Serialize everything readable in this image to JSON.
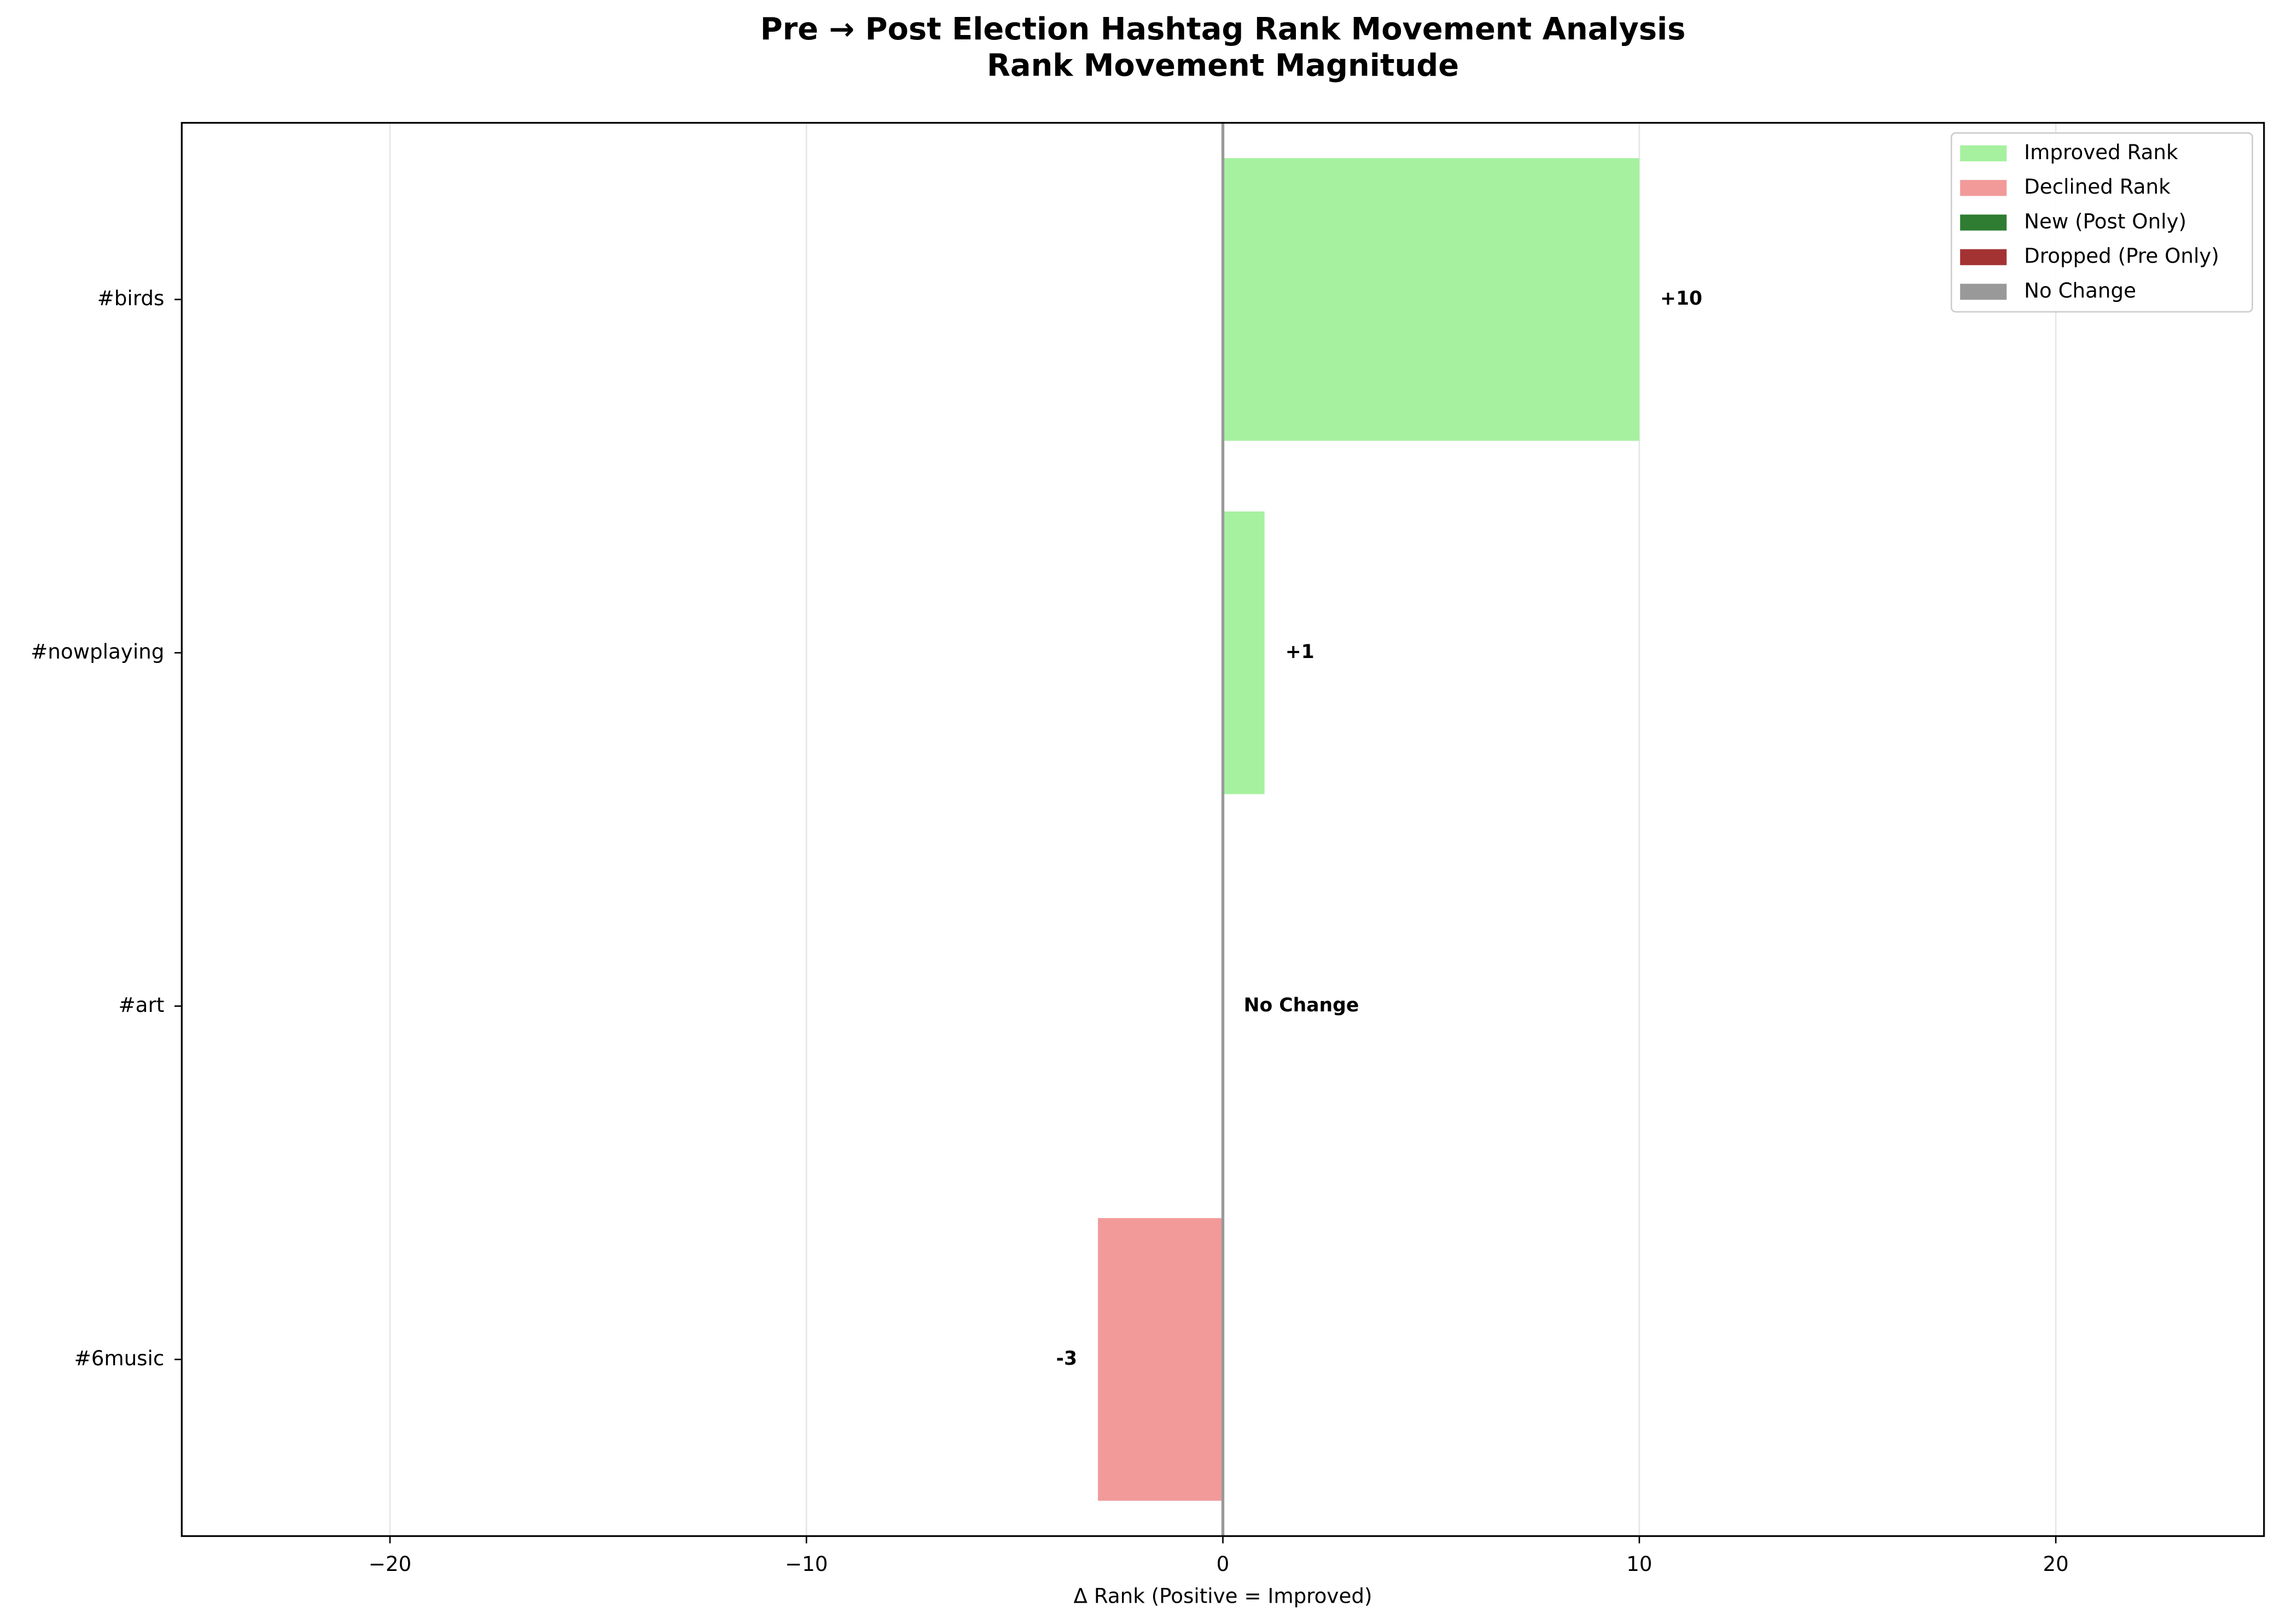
{
  "chart_data": {
    "type": "barh",
    "title": "Pre → Post Election Hashtag Rank Movement Analysis",
    "subtitle": "Rank Movement Magnitude",
    "xlabel": "Δ Rank (Positive = Improved)",
    "categories": [
      "#birds",
      "#nowplaying",
      "#art",
      "#6music"
    ],
    "values": [
      10,
      1,
      0,
      -3
    ],
    "value_labels": [
      "+10",
      "+1",
      "No Change",
      "-3"
    ],
    "colors": [
      "#a6f1a0",
      "#a6f1a0",
      "#999999",
      "#f29a9a"
    ],
    "xlim": [
      -25,
      25
    ],
    "xticks": [
      {
        "value": -20,
        "label": "−20"
      },
      {
        "value": -10,
        "label": "−10"
      },
      0,
      10,
      20
    ],
    "grid": true,
    "legend_position": "upper right",
    "legend": [
      {
        "name": "Improved Rank",
        "color": "#a6f1a0"
      },
      {
        "name": "Declined Rank",
        "color": "#f29a9a"
      },
      {
        "name": "New (Post Only)",
        "color": "#2e7d32"
      },
      {
        "name": "Dropped (Pre Only)",
        "color": "#a33333"
      },
      {
        "name": "No Change",
        "color": "#999999"
      }
    ]
  }
}
